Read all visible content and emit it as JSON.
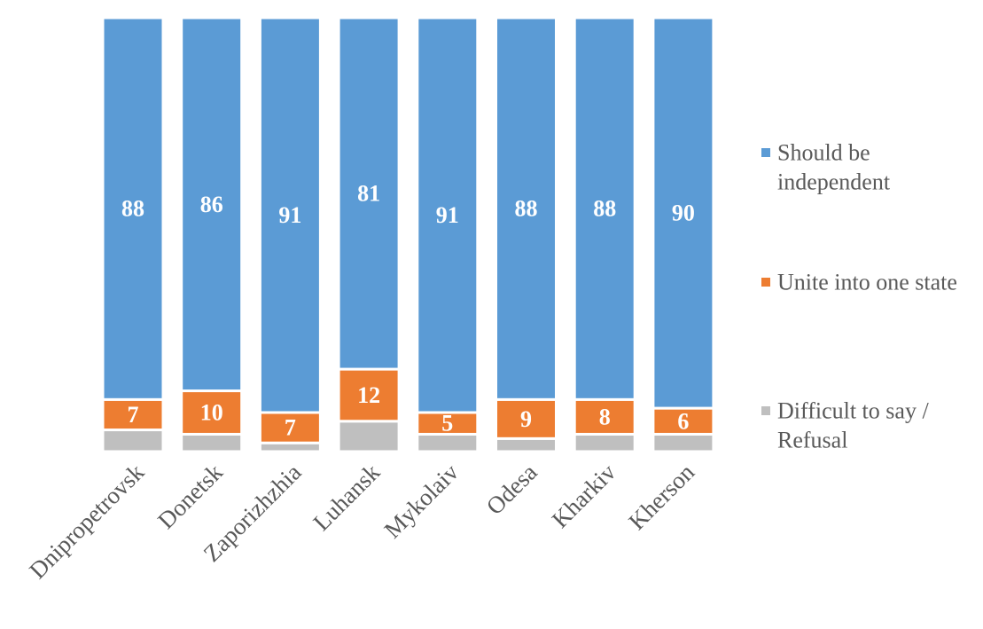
{
  "chart_data": {
    "type": "bar",
    "stacked": true,
    "percent_stacked": true,
    "categories": [
      "Dnipropetrovsk",
      "Donetsk",
      "Zaporizhzhia",
      "Luhansk",
      "Mykolaiv",
      "Odesa",
      "Kharkiv",
      "Kherson"
    ],
    "series": [
      {
        "name": "Difficult to say / Refusal",
        "name_lines": [
          "Difficult to say /",
          "Refusal"
        ],
        "values": [
          5,
          4,
          2,
          7,
          4,
          3,
          4,
          4
        ],
        "color": "#BFBFBF",
        "show_labels": false
      },
      {
        "name": "Unite into one state",
        "name_lines": [
          "Unite into one state"
        ],
        "values": [
          7,
          10,
          7,
          12,
          5,
          9,
          8,
          6
        ],
        "color": "#ED7D31",
        "show_labels": true
      },
      {
        "name": "Should be independent",
        "name_lines": [
          "Should be",
          "independent"
        ],
        "values": [
          88,
          86,
          91,
          81,
          91,
          88,
          88,
          90
        ],
        "color": "#5B9BD5",
        "show_labels": true
      }
    ],
    "title": "",
    "xlabel": "",
    "ylabel": "",
    "grid": false,
    "legend": "right"
  }
}
